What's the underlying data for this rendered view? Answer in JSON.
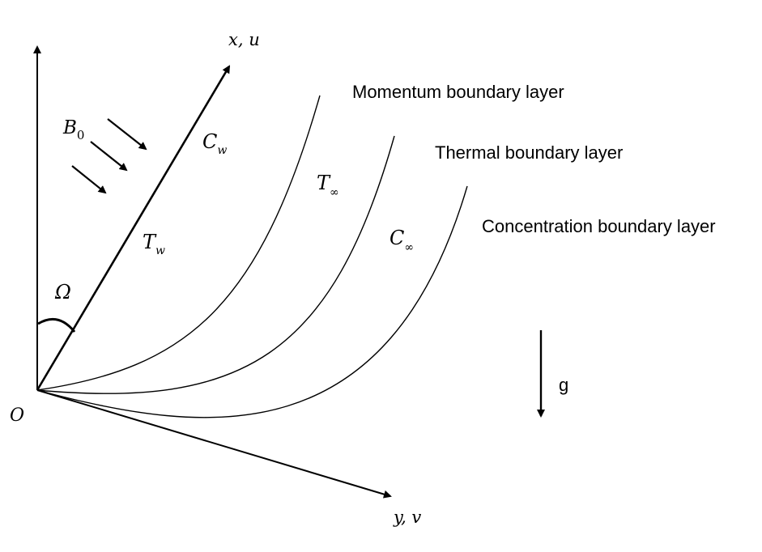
{
  "axes": {
    "x_label": "x, u",
    "y_label": "y, v",
    "origin": "O",
    "angle": "Ω"
  },
  "magnetic_field": {
    "symbol": "B",
    "subscript": "0"
  },
  "wall": {
    "concentration": {
      "symbol": "C",
      "subscript": "w"
    },
    "temperature": {
      "symbol": "T",
      "subscript": "w"
    }
  },
  "free_stream": {
    "temperature": {
      "symbol": "T",
      "subscript": "∞"
    },
    "concentration": {
      "symbol": "C",
      "subscript": "∞"
    }
  },
  "boundary_layers": {
    "momentum": "Momentum boundary layer",
    "thermal": "Thermal boundary layer",
    "concentration": "Concentration boundary layer"
  },
  "gravity": "g",
  "colors": {
    "stroke": "#000000",
    "background": "#ffffff"
  }
}
